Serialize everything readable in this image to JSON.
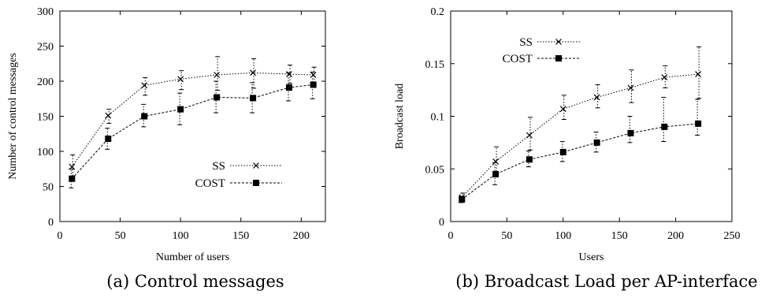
{
  "chart_data": [
    {
      "type": "line",
      "caption": "(a) Control messages",
      "xlabel": "Number of users",
      "ylabel": "Number of control messages",
      "xlim": [
        0,
        220
      ],
      "ylim": [
        0,
        300
      ],
      "xticks": [
        0,
        50,
        100,
        150,
        200
      ],
      "yticks": [
        0,
        50,
        100,
        150,
        200,
        250,
        300
      ],
      "legend_position": "center-right",
      "series": [
        {
          "name": "SS",
          "marker": "cross",
          "line_style": "dotted",
          "x": [
            10,
            40,
            70,
            100,
            130,
            160,
            190,
            210
          ],
          "y": [
            78,
            151,
            194,
            203,
            209,
            212,
            210,
            209
          ],
          "err_low": [
            65,
            140,
            180,
            188,
            187,
            190,
            197,
            198
          ],
          "err_high": [
            95,
            160,
            205,
            215,
            235,
            232,
            223,
            220
          ]
        },
        {
          "name": "COST",
          "marker": "square",
          "line_style": "dashed",
          "x": [
            10,
            40,
            70,
            100,
            130,
            160,
            190,
            210
          ],
          "y": [
            61,
            118,
            150,
            160,
            177,
            176,
            191,
            195
          ],
          "err_low": [
            48,
            103,
            135,
            138,
            155,
            155,
            172,
            175
          ],
          "err_high": [
            75,
            133,
            167,
            183,
            200,
            198,
            212,
            213
          ]
        }
      ]
    },
    {
      "type": "line",
      "caption": "(b) Broadcast Load per AP-interface",
      "xlabel": "Users",
      "ylabel": "Broadcast load",
      "xlim": [
        0,
        250
      ],
      "ylim": [
        0,
        0.2
      ],
      "xticks": [
        0,
        50,
        100,
        150,
        200,
        250
      ],
      "yticks": [
        0,
        0.05,
        0.1,
        0.15,
        0.2
      ],
      "ytick_labels": [
        "0",
        "0.05",
        "0.1",
        "0.15",
        "0.2"
      ],
      "legend_position": "top-left",
      "series": [
        {
          "name": "SS",
          "marker": "cross",
          "line_style": "dotted",
          "x": [
            10,
            40,
            70,
            100,
            130,
            160,
            190,
            220
          ],
          "y": [
            0.023,
            0.057,
            0.082,
            0.107,
            0.118,
            0.127,
            0.137,
            0.14
          ],
          "err_low": [
            0.02,
            0.045,
            0.068,
            0.097,
            0.108,
            0.113,
            0.127,
            0.117
          ],
          "err_high": [
            0.027,
            0.071,
            0.099,
            0.12,
            0.13,
            0.144,
            0.148,
            0.166
          ]
        },
        {
          "name": "COST",
          "marker": "square",
          "line_style": "dashed",
          "x": [
            10,
            40,
            70,
            100,
            130,
            160,
            190,
            220
          ],
          "y": [
            0.021,
            0.045,
            0.059,
            0.066,
            0.075,
            0.084,
            0.09,
            0.093
          ],
          "err_low": [
            0.018,
            0.035,
            0.052,
            0.057,
            0.066,
            0.075,
            0.076,
            0.082
          ],
          "err_high": [
            0.024,
            0.056,
            0.067,
            0.076,
            0.085,
            0.1,
            0.118,
            0.116
          ]
        }
      ]
    }
  ]
}
